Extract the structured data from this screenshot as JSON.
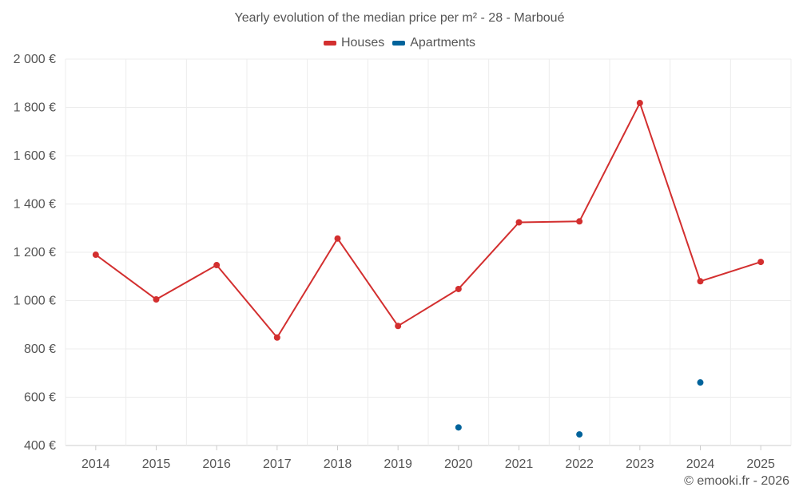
{
  "chart_data": {
    "type": "line",
    "title": "Yearly evolution of the median price per m² - 28 - Marboué",
    "categories": [
      "2014",
      "2015",
      "2016",
      "2017",
      "2018",
      "2019",
      "2020",
      "2021",
      "2022",
      "2023",
      "2024",
      "2025"
    ],
    "series": [
      {
        "name": "Houses",
        "color": "#d32f2f",
        "values": [
          1190,
          1005,
          1147,
          847,
          1257,
          895,
          1048,
          1324,
          1328,
          1818,
          1080,
          1160
        ],
        "line": true
      },
      {
        "name": "Apartments",
        "color": "#00639b",
        "values": [
          null,
          null,
          null,
          null,
          null,
          null,
          475,
          null,
          446,
          null,
          661,
          null
        ],
        "line": false
      }
    ],
    "yticks": [
      400,
      600,
      800,
      1000,
      1200,
      1400,
      1600,
      1800,
      2000
    ],
    "ytick_labels": [
      "400 €",
      "600 €",
      "800 €",
      "1 000 €",
      "1 200 €",
      "1 400 €",
      "1 600 €",
      "1 800 €",
      "2 000 €"
    ],
    "ylim": [
      400,
      2000
    ],
    "xlabel": "",
    "ylabel": ""
  },
  "credit": "© emooki.fr - 2026"
}
